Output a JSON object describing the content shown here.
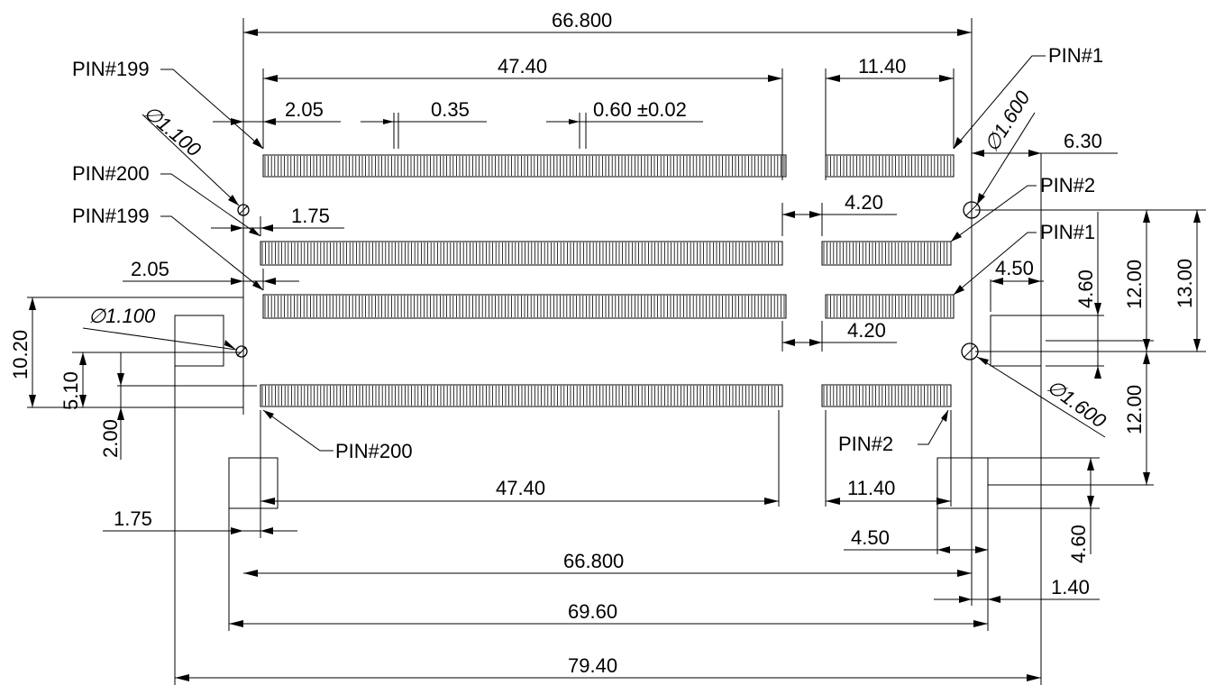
{
  "dimensions": {
    "top_overall": "66.800",
    "top_row_long": "47.40",
    "top_row_short": "11.40",
    "pitch_offset": "2.05",
    "slot_gap": "0.35",
    "pin_pitch": "0.60 ±0.02",
    "hole_small_top": "∅1.100",
    "hole_large_top": "∅1.600",
    "right_offset_630": "6.30",
    "offset_175_top": "1.75",
    "gap_420_top": "4.20",
    "offset_205": "2.05",
    "gap_420_mid": "4.20",
    "right_450_top": "4.50",
    "right_460_top": "4.60",
    "right_1200_top": "12.00",
    "right_1300": "13.00",
    "left_1020": "10.20",
    "left_510": "5.10",
    "left_200": "2.00",
    "hole_small_mid": "∅1.100",
    "hole_large_mid": "∅1.600",
    "right_1200_bot": "12.00",
    "bottom_row_long": "47.40",
    "bottom_row_short": "11.40",
    "offset_175_bot": "1.75",
    "right_450_bot": "4.50",
    "right_460_bot": "4.60",
    "right_140": "1.40",
    "bottom_66800": "66.800",
    "bottom_6960": "69.60",
    "bottom_7940": "79.40"
  },
  "pins": {
    "pin199_top": "PIN#199",
    "pin1_top": "PIN#1",
    "pin200_upper": "PIN#200",
    "pin2_upper": "PIN#2",
    "pin199_lower": "PIN#199",
    "pin1_lower": "PIN#1",
    "pin200_bottom": "PIN#200",
    "pin2_bottom": "PIN#2"
  }
}
